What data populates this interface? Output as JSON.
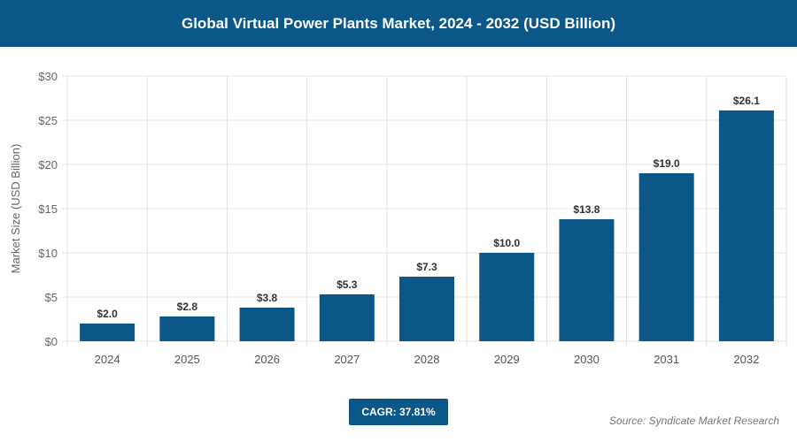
{
  "title": "Global Virtual Power Plants Market, 2024 - 2032 (USD Billion)",
  "cagr": "CAGR: 37.81%",
  "source": "Source: Syndicate Market Research",
  "chart_data": {
    "type": "bar",
    "title": "Global Virtual Power Plants Market, 2024 - 2032 (USD Billion)",
    "xlabel": "",
    "ylabel": "Market Size (USD Billion)",
    "categories": [
      "2024",
      "2025",
      "2026",
      "2027",
      "2028",
      "2029",
      "2030",
      "2031",
      "2032"
    ],
    "values": [
      2.0,
      2.8,
      3.8,
      5.3,
      7.3,
      10.0,
      13.8,
      19.0,
      26.1
    ],
    "data_labels": [
      "$2.0",
      "$2.8",
      "$3.8",
      "$5.3",
      "$7.3",
      "$10.0",
      "$13.8",
      "$19.0",
      "$26.1"
    ],
    "ylim": [
      0,
      30
    ],
    "yticks": [
      0,
      5,
      10,
      15,
      20,
      25,
      30
    ],
    "ytick_labels": [
      "$0",
      "$5",
      "$10",
      "$15",
      "$20",
      "$25",
      "$30"
    ],
    "grid": true,
    "bar_color": "#0b5787"
  }
}
